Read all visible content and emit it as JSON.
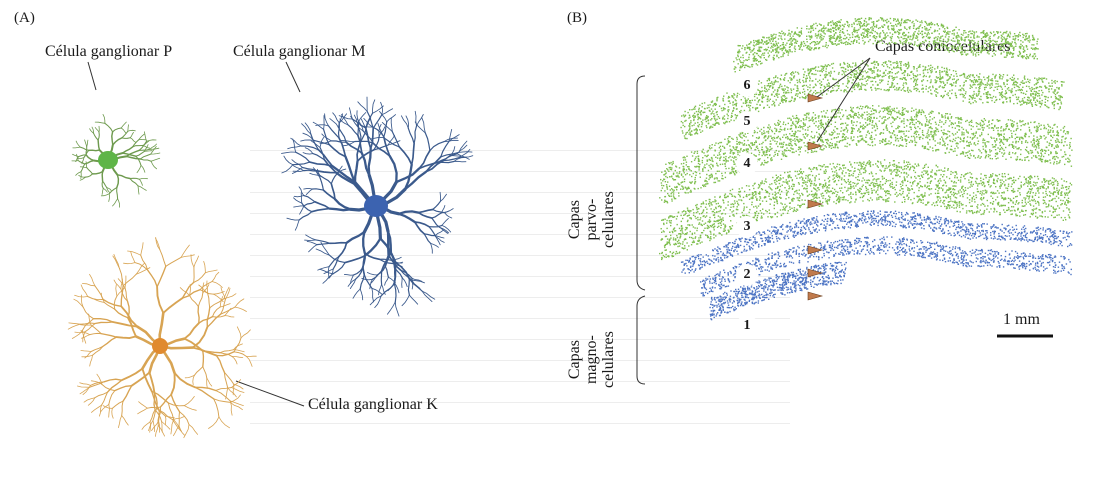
{
  "panel_a": {
    "label": "(A)",
    "cell_p_label": "Célula ganglionar P",
    "cell_m_label": "Célula ganglionar M",
    "cell_k_label": "Célula ganglionar K"
  },
  "panel_b": {
    "label": "(B)",
    "koniocellular_label": "Capas coniocelulares",
    "parvo_label": [
      "Capas",
      "parvo-",
      "celulares"
    ],
    "magno_label": [
      "Capas",
      "magno-",
      "celulares"
    ],
    "layers": [
      "6",
      "5",
      "4",
      "3",
      "2",
      "1"
    ],
    "scale_label": "1 mm"
  },
  "colors": {
    "cell_p": "#6e9a4e",
    "cell_m": "#3b5a8c",
    "cell_k": "#d8a453",
    "parvo_layers": "#7fbf4f",
    "magno_layers": "#4d74c4",
    "konio_markers": "#c07a4c"
  }
}
